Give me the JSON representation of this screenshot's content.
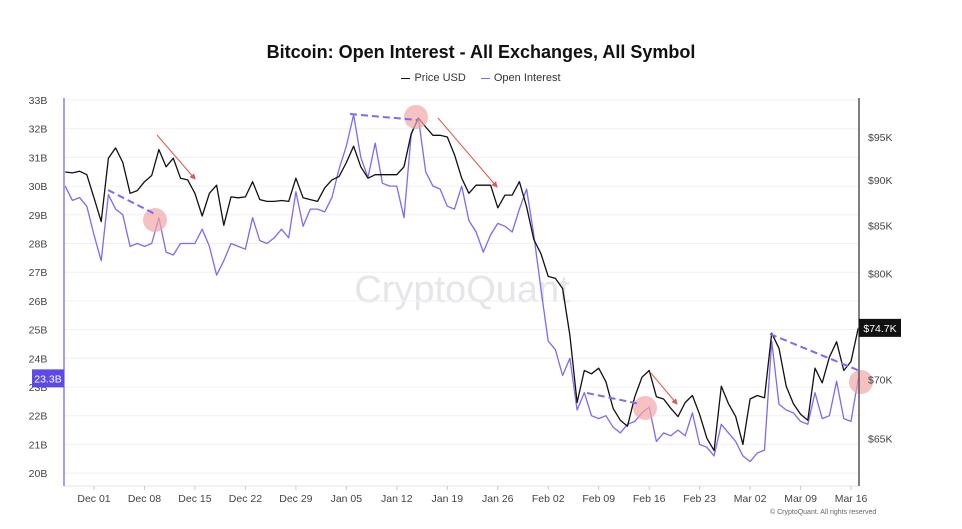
{
  "chart_data": {
    "type": "line",
    "title": "Bitcoin: Open Interest - All Exchanges, All Symbol",
    "legend_position": "top",
    "grid": true,
    "watermark": "CryptoQuant",
    "copyright": "© CryptoQuant. All rights reserved",
    "x": [
      "Nov 27",
      "Nov 28",
      "Nov 29",
      "Nov 30",
      "Dec 01",
      "Dec 02",
      "Dec 03",
      "Dec 04",
      "Dec 05",
      "Dec 06",
      "Dec 07",
      "Dec 08",
      "Dec 09",
      "Dec 10",
      "Dec 11",
      "Dec 12",
      "Dec 13",
      "Dec 14",
      "Dec 15",
      "Dec 16",
      "Dec 17",
      "Dec 18",
      "Dec 19",
      "Dec 20",
      "Dec 21",
      "Dec 22",
      "Dec 23",
      "Dec 24",
      "Dec 25",
      "Dec 26",
      "Dec 27",
      "Dec 28",
      "Dec 29",
      "Dec 30",
      "Dec 31",
      "Jan 01",
      "Jan 02",
      "Jan 03",
      "Jan 04",
      "Jan 05",
      "Jan 06",
      "Jan 07",
      "Jan 08",
      "Jan 09",
      "Jan 10",
      "Jan 11",
      "Jan 12",
      "Jan 13",
      "Jan 14",
      "Jan 15",
      "Jan 16",
      "Jan 17",
      "Jan 18",
      "Jan 19",
      "Jan 20",
      "Jan 21",
      "Jan 22",
      "Jan 23",
      "Jan 24",
      "Jan 25",
      "Jan 26",
      "Jan 27",
      "Jan 28",
      "Jan 29",
      "Jan 30",
      "Jan 31",
      "Feb 01",
      "Feb 02",
      "Feb 03",
      "Feb 04",
      "Feb 05",
      "Feb 06",
      "Feb 07",
      "Feb 08",
      "Feb 09",
      "Feb 10",
      "Feb 11",
      "Feb 12",
      "Feb 13",
      "Feb 14",
      "Feb 15",
      "Feb 16",
      "Feb 17",
      "Feb 18",
      "Feb 19",
      "Feb 20",
      "Feb 21",
      "Feb 22",
      "Feb 23",
      "Feb 24",
      "Feb 25",
      "Feb 26",
      "Feb 27",
      "Feb 28",
      "Mar 01",
      "Mar 02",
      "Mar 03",
      "Mar 04",
      "Mar 05",
      "Mar 06",
      "Mar 07",
      "Mar 08",
      "Mar 09",
      "Mar 10",
      "Mar 11",
      "Mar 12",
      "Mar 13",
      "Mar 14",
      "Mar 15",
      "Mar 16",
      "Mar 17"
    ],
    "x_ticks": [
      "Dec 01",
      "Dec 08",
      "Dec 15",
      "Dec 22",
      "Dec 29",
      "Jan 05",
      "Jan 12",
      "Jan 19",
      "Jan 26",
      "Feb 02",
      "Feb 09",
      "Feb 16",
      "Feb 23",
      "Mar 02",
      "Mar 09",
      "Mar 16"
    ],
    "series": [
      {
        "name": "Price USD",
        "axis": "right",
        "unit": "USD (thousands)",
        "color": "#111111",
        "values": [
          90.9,
          90.8,
          91.0,
          90.6,
          88.0,
          85.4,
          92.5,
          93.7,
          92.0,
          88.5,
          88.8,
          89.8,
          90.5,
          93.5,
          91.5,
          92.5,
          90.2,
          90.0,
          88.5,
          86.0,
          88.5,
          89.4,
          85.0,
          88.1,
          88.0,
          88.1,
          89.8,
          87.8,
          87.6,
          87.6,
          87.7,
          87.6,
          90.2,
          88.0,
          87.8,
          87.6,
          89.1,
          90.0,
          90.4,
          92.0,
          93.9,
          91.5,
          90.2,
          90.6,
          90.6,
          90.6,
          90.6,
          91.5,
          95.4,
          97.3,
          96.2,
          95.2,
          95.2,
          95.0,
          92.9,
          90.2,
          88.5,
          89.4,
          89.4,
          89.4,
          86.9,
          88.3,
          88.3,
          89.8,
          87.0,
          83.5,
          82.0,
          79.7,
          79.5,
          78.5,
          74.0,
          68.0,
          70.8,
          70.5,
          71.0,
          69.8,
          67.5,
          66.5,
          66.0,
          68.5,
          70.2,
          70.8,
          68.5,
          68.3,
          67.5,
          66.8,
          68.0,
          68.6,
          67.0,
          65.0,
          64.0,
          69.4,
          67.9,
          66.8,
          64.5,
          68.3,
          68.6,
          68.4,
          74.2,
          72.8,
          69.4,
          67.9,
          67.0,
          66.5,
          71.0,
          69.7,
          72.0,
          73.4,
          70.8,
          71.6,
          74.7
        ]
      },
      {
        "name": "Open Interest",
        "axis": "left",
        "unit": "B",
        "color": "#7b6cf0",
        "values": [
          30.0,
          29.5,
          29.6,
          29.3,
          28.3,
          27.4,
          29.7,
          29.2,
          29.0,
          27.9,
          28.0,
          27.9,
          28.0,
          28.9,
          27.7,
          27.6,
          28.0,
          28.0,
          28.0,
          28.5,
          27.9,
          26.9,
          27.4,
          28.0,
          27.9,
          27.8,
          28.9,
          28.1,
          28.0,
          28.2,
          28.5,
          28.2,
          29.8,
          28.6,
          29.2,
          29.2,
          29.1,
          29.6,
          30.6,
          31.4,
          32.48,
          31.0,
          30.3,
          31.5,
          30.1,
          30.0,
          30.0,
          28.9,
          31.8,
          32.37,
          30.5,
          30.0,
          29.9,
          29.3,
          29.2,
          30.0,
          28.8,
          28.4,
          27.7,
          28.3,
          28.7,
          28.6,
          28.4,
          29.2,
          29.9,
          28.3,
          26.4,
          24.6,
          24.3,
          23.4,
          24.0,
          22.2,
          22.8,
          22.0,
          21.9,
          22.0,
          21.6,
          21.4,
          21.7,
          21.8,
          22.1,
          22.3,
          21.1,
          21.4,
          21.3,
          21.5,
          21.3,
          22.1,
          21.0,
          20.9,
          20.6,
          21.7,
          21.4,
          21.1,
          20.6,
          20.4,
          20.7,
          20.8,
          24.6,
          22.4,
          22.2,
          22.1,
          21.8,
          21.7,
          22.8,
          21.9,
          22.0,
          23.2,
          21.9,
          21.8,
          23.3
        ]
      }
    ],
    "left_axis": {
      "ylim": [
        20,
        33
      ],
      "ticks": [
        "20B",
        "21B",
        "22B",
        "23B",
        "24B",
        "25B",
        "26B",
        "27B",
        "28B",
        "29B",
        "30B",
        "31B",
        "32B",
        "33B"
      ],
      "current_label": "23.3B",
      "current_value": 23.3
    },
    "right_axis": {
      "scale": "log",
      "ticks": [
        "$65K",
        "$70K",
        "$75K",
        "$80K",
        "$85K",
        "$90K",
        "$95K"
      ],
      "tick_values": [
        65,
        70,
        75,
        80,
        85,
        90,
        95
      ],
      "current_label": "$74.7K",
      "current_value": 74.7
    },
    "annotation_color": "#e05555",
    "highlight_color": "#f2a6a6"
  }
}
